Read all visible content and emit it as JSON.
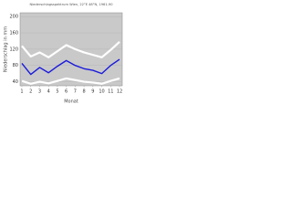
{
  "chart_data": {
    "type": "line",
    "title": "Niederschlagsspektrum Wien, 22°E 48°N, 1961-90",
    "x_label": "Monat",
    "y_label": "Niederschlag in mm",
    "x": [
      1,
      2,
      3,
      4,
      5,
      6,
      7,
      8,
      9,
      10,
      11,
      12
    ],
    "xlim": [
      1,
      12
    ],
    "xticks": [
      1,
      2,
      3,
      4,
      5,
      6,
      7,
      8,
      9,
      10,
      11,
      12
    ],
    "ylim": [
      30,
      205
    ],
    "yticks": [
      40,
      80,
      120,
      160,
      200
    ],
    "grid": true,
    "series": [
      {
        "color": "#ffffff",
        "values": [
          128,
          102,
          112,
          100,
          115,
          130,
          120,
          112,
          106,
          100,
          118,
          138
        ]
      },
      {
        "color": "#ffffff",
        "values": [
          42,
          35,
          40,
          36,
          42,
          48,
          44,
          40,
          38,
          35,
          42,
          48
        ]
      },
      {
        "color": "#1a1adc",
        "values": [
          85,
          58,
          75,
          62,
          78,
          92,
          80,
          72,
          68,
          60,
          80,
          95
        ]
      }
    ]
  }
}
